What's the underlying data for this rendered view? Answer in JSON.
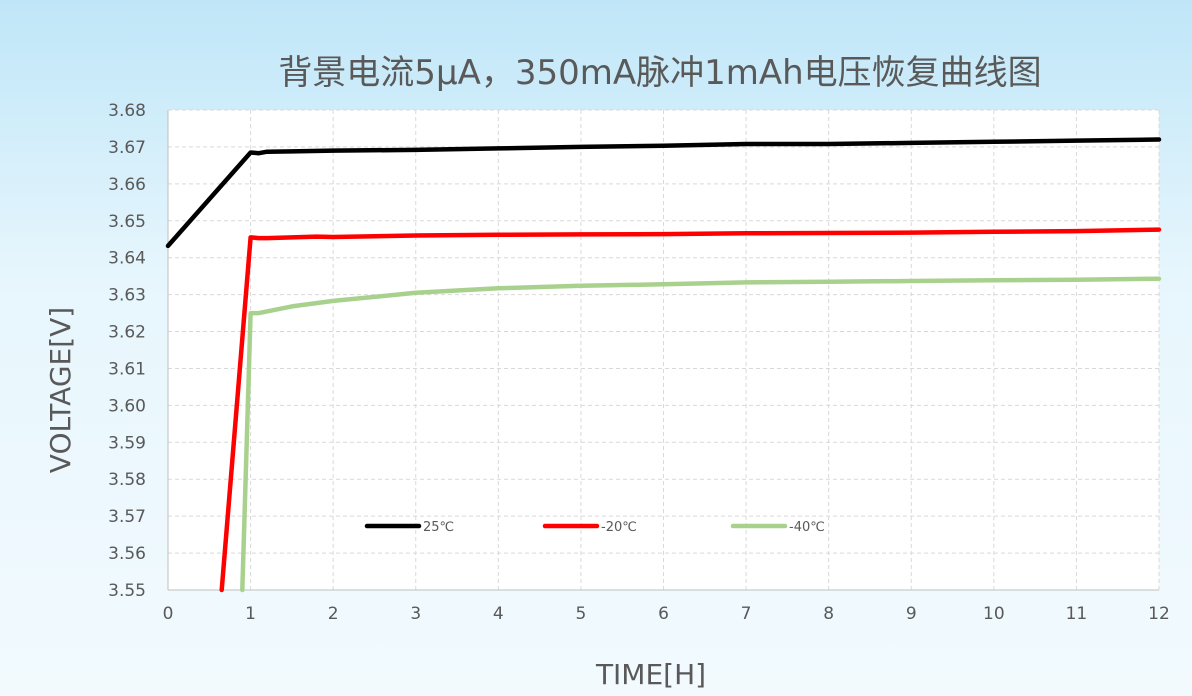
{
  "chart_data": {
    "type": "line",
    "title": "背景电流5µA，350mA脉冲1mAh电压恢复曲线图",
    "xlabel": "TIME[H]",
    "ylabel": "VOLTAGE[V]",
    "xlim": [
      0,
      12
    ],
    "ylim": [
      3.55,
      3.68
    ],
    "x_ticks": [
      "0",
      "1",
      "2",
      "3",
      "4",
      "5",
      "6",
      "7",
      "8",
      "9",
      "10",
      "11",
      "12"
    ],
    "y_ticks": [
      "3.55",
      "3.56",
      "3.57",
      "3.58",
      "3.59",
      "3.60",
      "3.61",
      "3.62",
      "3.63",
      "3.64",
      "3.65",
      "3.66",
      "3.67",
      "3.68"
    ],
    "grid": "dashed",
    "legend_position": "bottom-center-inside",
    "series": [
      {
        "name": "25℃",
        "color": "#000000",
        "x": [
          0,
          1.0,
          1.1,
          1.2,
          1.5,
          2,
          3,
          4,
          5,
          6,
          7,
          8,
          9,
          10,
          11,
          12
        ],
        "y": [
          3.6432,
          3.6685,
          3.6683,
          3.6687,
          3.6688,
          3.669,
          3.6692,
          3.6696,
          3.67,
          3.6703,
          3.6708,
          3.6708,
          3.6711,
          3.6714,
          3.6717,
          3.672
        ]
      },
      {
        "name": "-20℃",
        "color": "#ff0000",
        "x": [
          0.65,
          1.0,
          1.1,
          1.2,
          1.5,
          1.8,
          2,
          3,
          4,
          5,
          6,
          7,
          8,
          9,
          10,
          11,
          12
        ],
        "y": [
          3.55,
          3.6455,
          3.6453,
          3.6453,
          3.6455,
          3.6457,
          3.6456,
          3.646,
          3.6462,
          3.6463,
          3.6464,
          3.6466,
          3.6467,
          3.6468,
          3.647,
          3.6472,
          3.6476
        ]
      },
      {
        "name": "-40℃",
        "color": "#a9d18e",
        "x": [
          0.9,
          1.0,
          1.1,
          1.5,
          2,
          3,
          4,
          5,
          6,
          7,
          8,
          9,
          10,
          11,
          12
        ],
        "y": [
          3.55,
          3.625,
          3.625,
          3.6268,
          3.6283,
          3.6305,
          3.6317,
          3.6324,
          3.6328,
          3.6333,
          3.6335,
          3.6337,
          3.6339,
          3.634,
          3.6343
        ]
      }
    ]
  }
}
